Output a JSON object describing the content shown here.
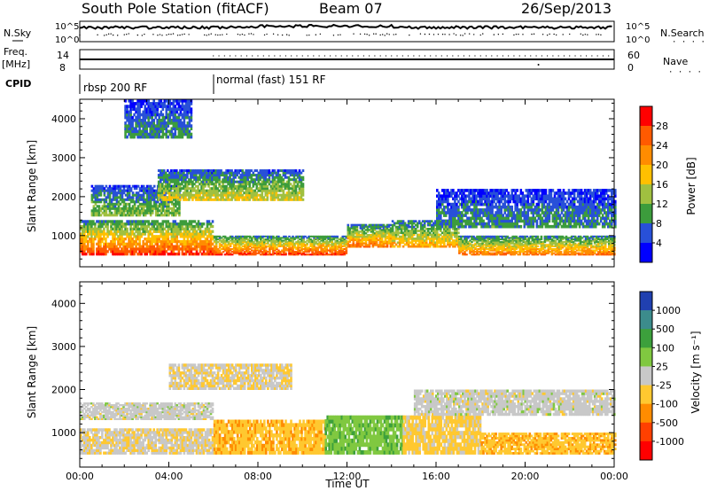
{
  "header": {
    "station_title": "South Pole Station (fitACF)",
    "beam": "Beam 07",
    "date": "26/Sep/2013"
  },
  "top_panels": {
    "nsky_label": "N.Sky",
    "nsearch_label": "N.Search",
    "freq_label_line1": "Freq.",
    "freq_label_line2": "[MHz]",
    "nave_label": "Nave",
    "cpid_label": "CPID",
    "noise_ticks": [
      "10^5",
      "10^0"
    ],
    "freq_ticks": [
      "14",
      "8"
    ],
    "nave_ticks": [
      "60",
      "0"
    ]
  },
  "cpid_segments": [
    {
      "label": "rbsp 200 RF",
      "start_hour": 0
    },
    {
      "label": "normal (fast) 151 RF",
      "start_hour": 6
    }
  ],
  "power_panel": {
    "ylabel": "Slant Range [km]",
    "yticks": [
      "4000",
      "3000",
      "2000",
      "1000"
    ],
    "colorbar_label": "Power [dB]",
    "colorbar_ticks": [
      "28",
      "24",
      "20",
      "16",
      "12",
      "8",
      "4"
    ],
    "colorbar_colors": [
      "#ff0000",
      "#ff5a00",
      "#ff8c00",
      "#ffc000",
      "#a0c040",
      "#3c9c3c",
      "#2850d8",
      "#0000ff"
    ]
  },
  "velocity_panel": {
    "ylabel": "Slant Range [km]",
    "yticks": [
      "4000",
      "3000",
      "2000",
      "1000"
    ],
    "colorbar_label": "Velocity [m s⁻¹]",
    "colorbar_ticks": [
      "1000",
      "500",
      "100",
      "25",
      "-25",
      "-100",
      "-500",
      "-1000"
    ],
    "colorbar_colors": [
      "#2040b0",
      "#3c8c8c",
      "#3ca03c",
      "#80c840",
      "#c8c8c8",
      "#ffc830",
      "#ff8c00",
      "#ff4000",
      "#ff0000"
    ]
  },
  "x_axis": {
    "ticks": [
      "00:00",
      "04:00",
      "08:00",
      "12:00",
      "16:00",
      "20:00",
      "00:00"
    ],
    "label": "Time UT"
  },
  "chart_data": {
    "type": "heatmap",
    "title": "South Pole Station (fitACF)",
    "xlabel": "Time UT",
    "ylabel": "Slant Range [km]",
    "x_range_hours": [
      0,
      24
    ],
    "y_range_km": [
      200,
      4500
    ],
    "power_scale_db": [
      0,
      30
    ],
    "velocity_scale_ms": [
      -1000,
      1000
    ],
    "power_echo_bands": [
      {
        "start_hour": 0.0,
        "end_hour": 6.0,
        "range_km": [
          500,
          1400
        ],
        "peak_power_db": 28
      },
      {
        "start_hour": 6.0,
        "end_hour": 12.0,
        "range_km": [
          500,
          1000
        ],
        "peak_power_db": 28
      },
      {
        "start_hour": 12.0,
        "end_hour": 14.0,
        "range_km": [
          700,
          1300
        ],
        "peak_power_db": 24
      },
      {
        "start_hour": 14.0,
        "end_hour": 17.0,
        "range_km": [
          700,
          1400
        ],
        "peak_power_db": 20
      },
      {
        "start_hour": 17.0,
        "end_hour": 24.0,
        "range_km": [
          500,
          1000
        ],
        "peak_power_db": 24
      },
      {
        "start_hour": 0.5,
        "end_hour": 4.5,
        "range_km": [
          1500,
          2300
        ],
        "peak_power_db": 12
      },
      {
        "start_hour": 3.5,
        "end_hour": 10.0,
        "range_km": [
          1900,
          2700
        ],
        "peak_power_db": 16
      },
      {
        "start_hour": 16.0,
        "end_hour": 24.0,
        "range_km": [
          1200,
          2200
        ],
        "peak_power_db": 8
      },
      {
        "start_hour": 2.0,
        "end_hour": 5.0,
        "range_km": [
          3500,
          4500
        ],
        "peak_power_db": 8
      }
    ],
    "velocity_echo_bands": [
      {
        "start_hour": 0.0,
        "end_hour": 6.0,
        "range_km": [
          500,
          1100
        ],
        "velocity_ms": -100
      },
      {
        "start_hour": 6.0,
        "end_hour": 11.0,
        "range_km": [
          500,
          1300
        ],
        "velocity_ms": -300
      },
      {
        "start_hour": 11.0,
        "end_hour": 14.5,
        "range_km": [
          500,
          1400
        ],
        "velocity_ms": 300
      },
      {
        "start_hour": 14.5,
        "end_hour": 18.0,
        "range_km": [
          500,
          1400
        ],
        "velocity_ms": -200
      },
      {
        "start_hour": 18.0,
        "end_hour": 24.0,
        "range_km": [
          500,
          1000
        ],
        "velocity_ms": -300
      },
      {
        "start_hour": 0.0,
        "end_hour": 6.0,
        "range_km": [
          1300,
          1700
        ],
        "velocity_ms": 0
      },
      {
        "start_hour": 15.0,
        "end_hour": 24.0,
        "range_km": [
          1400,
          2000
        ],
        "velocity_ms": 0
      },
      {
        "start_hour": 4.0,
        "end_hour": 9.5,
        "range_km": [
          2000,
          2600
        ],
        "velocity_ms": -100
      }
    ]
  }
}
